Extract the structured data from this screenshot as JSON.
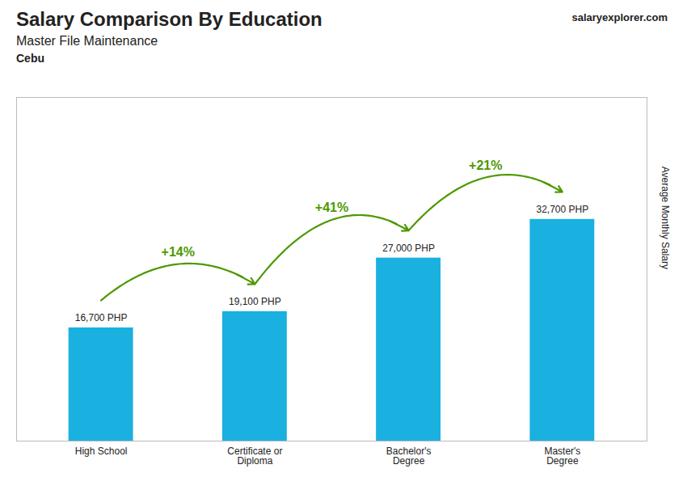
{
  "chart_data": {
    "type": "bar",
    "title": "Salary Comparison By Education",
    "subtitle": "Master File Maintenance",
    "ylabel": "Average Monthly Salary",
    "categories": [
      "High School",
      "Certificate or\nDiploma",
      "Bachelor's\nDegree",
      "Master's\nDegree"
    ],
    "values": [
      16700,
      19100,
      27000,
      32700
    ],
    "value_labels": [
      "16,700 PHP",
      "19,100 PHP",
      "27,000 PHP",
      "32,700 PHP"
    ],
    "data_labels": true,
    "color": "#1ab0e0",
    "ylim": [
      0,
      50685
    ],
    "tick_labels": "x",
    "grid": false,
    "annotations": [
      {
        "text": "Cebu"
      },
      {
        "text": "salaryexplorer.com"
      },
      {
        "text": "+14%",
        "from": "High School",
        "to": "Certificate or\nDiploma"
      },
      {
        "text": "+41%",
        "from": "Certificate or\nDiploma",
        "to": "Bachelor's\nDegree"
      },
      {
        "text": "+21%",
        "from": "Bachelor's\nDegree",
        "to": "Master's\nDegree"
      }
    ]
  }
}
